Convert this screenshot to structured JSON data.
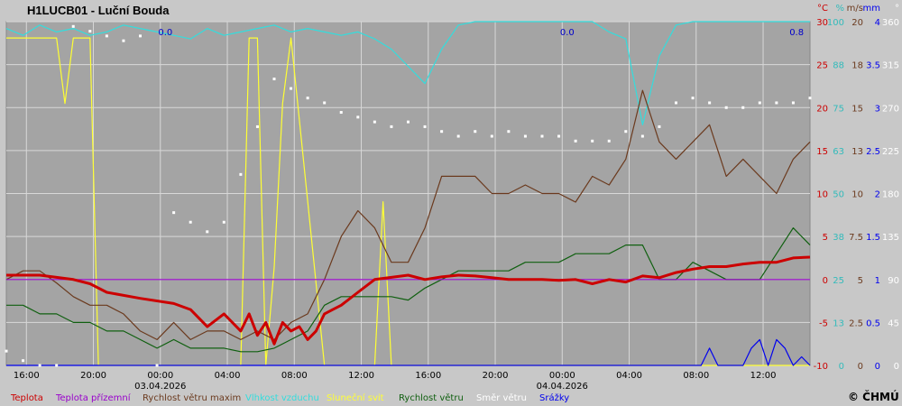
{
  "title": "H1LUCB01 - Luční Bouda",
  "copyright": "© ČHMÚ",
  "colors": {
    "background": "#c8c8c8",
    "plot_background": "#a4a4a4",
    "grid": "#d8d8d8",
    "teplota": "#cc0000",
    "teplota_prizemni": "#9900cc",
    "rychlost_max": "#6b3a1e",
    "vlhkost": "#33dddd",
    "slunecni_svit": "#ffff33",
    "rychlost": "#106010",
    "smer": "#ffffff",
    "srazky": "#0000ee"
  },
  "chart_data": {
    "type": "line",
    "title": "H1LUCB01 - Luční Bouda",
    "x_tick_labels": [
      "16:00",
      "20:00",
      "00:00",
      "04:00",
      "08:00",
      "12:00",
      "16:00",
      "20:00",
      "00:00",
      "04:00",
      "08:00",
      "12:00"
    ],
    "date_labels": [
      {
        "after_tick": 2,
        "text": "03.04.2026"
      },
      {
        "after_tick": 8,
        "text": "04.04.2026"
      }
    ],
    "axis_headers": [
      "°C",
      "%",
      "m/s",
      "mm",
      "°"
    ],
    "y_axes": {
      "teplota_c": {
        "ticks": [
          "30",
          "25",
          "20",
          "15",
          "10",
          "5",
          "0",
          "-5",
          "-10"
        ],
        "range": [
          -10,
          30
        ]
      },
      "vlhkost_pct": {
        "ticks": [
          "100",
          "88",
          "75",
          "63",
          "50",
          "38",
          "25",
          "13",
          "0"
        ],
        "range": [
          0,
          100
        ]
      },
      "rychlost_ms": {
        "ticks": [
          "20",
          "18",
          "15",
          "13",
          "10",
          "7.5",
          "5",
          "2.5",
          "0"
        ],
        "range": [
          0,
          20
        ]
      },
      "srazky_mm": {
        "ticks": [
          "4",
          "3.5",
          "3",
          "2.5",
          "2",
          "1.5",
          "1",
          "0.5",
          "0"
        ],
        "range": [
          0,
          4
        ]
      },
      "smer_deg": {
        "ticks": [
          "360",
          "315",
          "270",
          "225",
          "180",
          "135",
          "90",
          "45",
          "0"
        ],
        "range": [
          0,
          360
        ]
      }
    },
    "insolation_labels": [
      "0.0",
      "0.0",
      "0.8"
    ],
    "legend": [
      "Teplota",
      "Teplota přízemní",
      "Rychlost větru maxim",
      "Vlhkost vzduchu",
      "Sluneční svit",
      "Rychlost větru",
      "Směr  větru",
      "Srážky"
    ],
    "series": [
      {
        "name": "Teplota",
        "unit": "°C",
        "x": [
          0,
          2,
          4,
          5,
          6,
          8,
          10,
          11,
          12,
          13,
          14,
          14.5,
          15,
          15.5,
          16,
          16.5,
          17,
          17.5,
          18,
          18.5,
          19,
          19.5,
          20,
          21,
          22,
          24,
          25,
          26,
          27,
          28,
          29,
          30,
          31,
          32,
          33,
          34,
          35,
          36,
          37,
          38,
          39,
          40,
          41,
          42,
          43,
          44,
          45,
          46,
          47,
          48
        ],
        "y": [
          0.5,
          0.5,
          0,
          -0.5,
          -1.5,
          -2.2,
          -2.8,
          -3.5,
          -5.5,
          -4,
          -6,
          -4,
          -6.5,
          -5,
          -7.5,
          -5,
          -6,
          -5.5,
          -7,
          -6,
          -4,
          -3.5,
          -3,
          -1.5,
          0,
          0.5,
          0,
          0.3,
          0.5,
          0.4,
          0.2,
          0,
          0,
          0,
          -0.1,
          0,
          -0.5,
          0,
          -0.3,
          0.4,
          0.2,
          0.8,
          1.2,
          1.5,
          1.5,
          1.8,
          2,
          2,
          2.5,
          2.6
        ]
      },
      {
        "name": "Teplota přízemní",
        "unit": "°C",
        "x": [
          0,
          48
        ],
        "y": [
          0,
          0
        ]
      },
      {
        "name": "Rychlost větru maxim",
        "unit": "m/s",
        "x": [
          0,
          1,
          2,
          3,
          4,
          5,
          6,
          7,
          8,
          9,
          10,
          11,
          12,
          13,
          14,
          15,
          16,
          17,
          18,
          19,
          20,
          21,
          22,
          23,
          24,
          25,
          26,
          27,
          28,
          29,
          30,
          31,
          32,
          33,
          34,
          35,
          36,
          37,
          38,
          39,
          40,
          41,
          42,
          43,
          44,
          45,
          46,
          47,
          48
        ],
        "y": [
          5,
          5.5,
          5.5,
          4.8,
          4,
          3.5,
          3.5,
          3,
          2,
          1.5,
          2.5,
          1.5,
          2,
          2,
          1.5,
          2,
          1.5,
          2.5,
          3,
          5,
          7.5,
          9,
          8,
          6,
          6,
          8,
          11,
          11,
          11,
          10,
          10,
          10.5,
          10,
          10,
          9.5,
          11,
          10.5,
          12,
          16,
          13,
          12,
          13,
          14,
          11,
          12,
          11,
          10,
          12,
          13
        ]
      },
      {
        "name": "Vlhkost vzduchu",
        "unit": "%",
        "x": [
          0,
          1,
          2,
          3,
          4,
          5,
          6,
          7,
          8,
          9,
          10,
          11,
          12,
          13,
          14,
          15,
          16,
          17,
          18,
          19,
          20,
          21,
          22,
          23,
          24,
          25,
          26,
          27,
          28,
          29,
          30,
          31,
          32,
          33,
          34,
          35,
          36,
          37,
          38,
          39,
          40,
          41,
          42,
          43,
          44,
          45,
          46,
          47,
          48
        ],
        "y": [
          98,
          96,
          99,
          97,
          98,
          96,
          97,
          99,
          98,
          97,
          96,
          95,
          98,
          96,
          97,
          98,
          99,
          97,
          98,
          97,
          96,
          97,
          95,
          92,
          87,
          82,
          92,
          99,
          100,
          100,
          100,
          100,
          100,
          100,
          100,
          100,
          97,
          95,
          70,
          90,
          99,
          100,
          100,
          100,
          100,
          100,
          100,
          100,
          100
        ]
      },
      {
        "name": "Sluneční svit",
        "unit": "",
        "x": [
          0,
          3,
          3.5,
          4,
          5,
          5.5,
          6,
          14,
          14.5,
          15,
          15.5,
          16,
          16.5,
          17,
          19,
          20,
          21,
          22,
          22.5,
          23,
          24,
          25,
          26,
          48
        ],
        "y": [
          1,
          1,
          0.8,
          1,
          1,
          0,
          0,
          0,
          1,
          1,
          0,
          0.3,
          0.8,
          1,
          0,
          0,
          0,
          0,
          0.5,
          0,
          0,
          0,
          0,
          0
        ]
      },
      {
        "name": "Rychlost větru",
        "unit": "m/s",
        "x": [
          0,
          1,
          2,
          3,
          4,
          5,
          6,
          7,
          8,
          9,
          10,
          11,
          12,
          13,
          14,
          15,
          16,
          17,
          18,
          19,
          20,
          21,
          22,
          23,
          24,
          25,
          26,
          27,
          28,
          29,
          30,
          31,
          32,
          33,
          34,
          35,
          36,
          37,
          38,
          39,
          40,
          41,
          42,
          43,
          44,
          45,
          46,
          47,
          48
        ],
        "y": [
          3.5,
          3.5,
          3,
          3,
          2.5,
          2.5,
          2,
          2,
          1.5,
          1,
          1.5,
          1,
          1,
          1,
          0.8,
          0.8,
          1,
          1.5,
          2,
          3.5,
          4,
          4,
          4,
          4,
          3.8,
          4.5,
          5,
          5.5,
          5.5,
          5.5,
          5.5,
          6,
          6,
          6,
          6.5,
          6.5,
          6.5,
          7,
          7,
          5,
          5,
          6,
          5.5,
          5,
          5,
          5,
          6.5,
          8,
          7
        ]
      },
      {
        "name": "Směr  větru",
        "unit": "°",
        "x": [
          0,
          1,
          2,
          3,
          4,
          5,
          6,
          7,
          8,
          9,
          10,
          11,
          12,
          13,
          14,
          15,
          16,
          17,
          18,
          19,
          20,
          21,
          22,
          23,
          24,
          25,
          26,
          27,
          28,
          29,
          30,
          31,
          32,
          33,
          34,
          35,
          36,
          37,
          38,
          39,
          40,
          41,
          42,
          43,
          44,
          45,
          46,
          47,
          48
        ],
        "y": [
          15,
          5,
          0,
          0,
          355,
          350,
          345,
          340,
          345,
          0,
          160,
          150,
          140,
          150,
          200,
          250,
          300,
          290,
          280,
          275,
          265,
          260,
          255,
          250,
          255,
          250,
          245,
          240,
          245,
          240,
          245,
          240,
          240,
          240,
          235,
          235,
          235,
          245,
          240,
          250,
          275,
          280,
          275,
          270,
          270,
          275,
          275,
          275,
          280
        ]
      },
      {
        "name": "Srážky",
        "unit": "mm",
        "x": [
          0,
          41.5,
          42,
          42.5,
          44,
          44.5,
          45,
          45.5,
          46,
          46.5,
          47,
          47.5,
          48
        ],
        "y": [
          0,
          0,
          0.2,
          0,
          0,
          0.2,
          0.3,
          0,
          0.3,
          0.2,
          0,
          0.1,
          0
        ]
      }
    ]
  }
}
